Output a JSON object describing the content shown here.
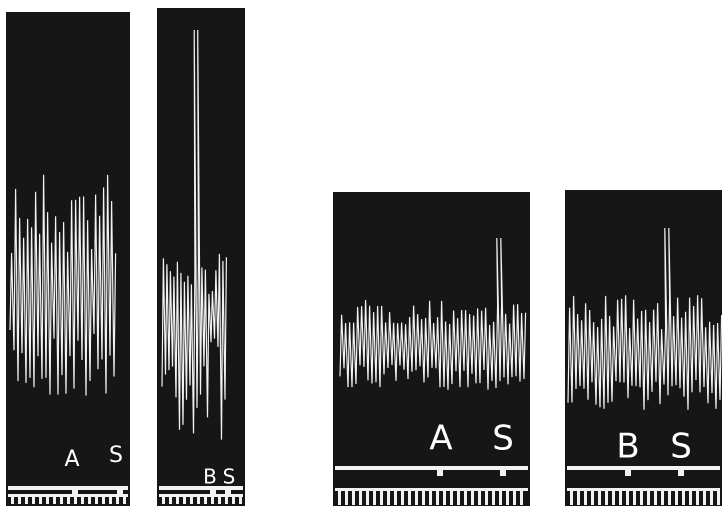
{
  "panels": [
    {
      "labels": [
        "A",
        "S"
      ]
    },
    {
      "labels": [
        "B",
        "S"
      ]
    },
    {
      "labels": [
        "A",
        "S"
      ]
    },
    {
      "labels": [
        "B",
        "S"
      ]
    }
  ]
}
